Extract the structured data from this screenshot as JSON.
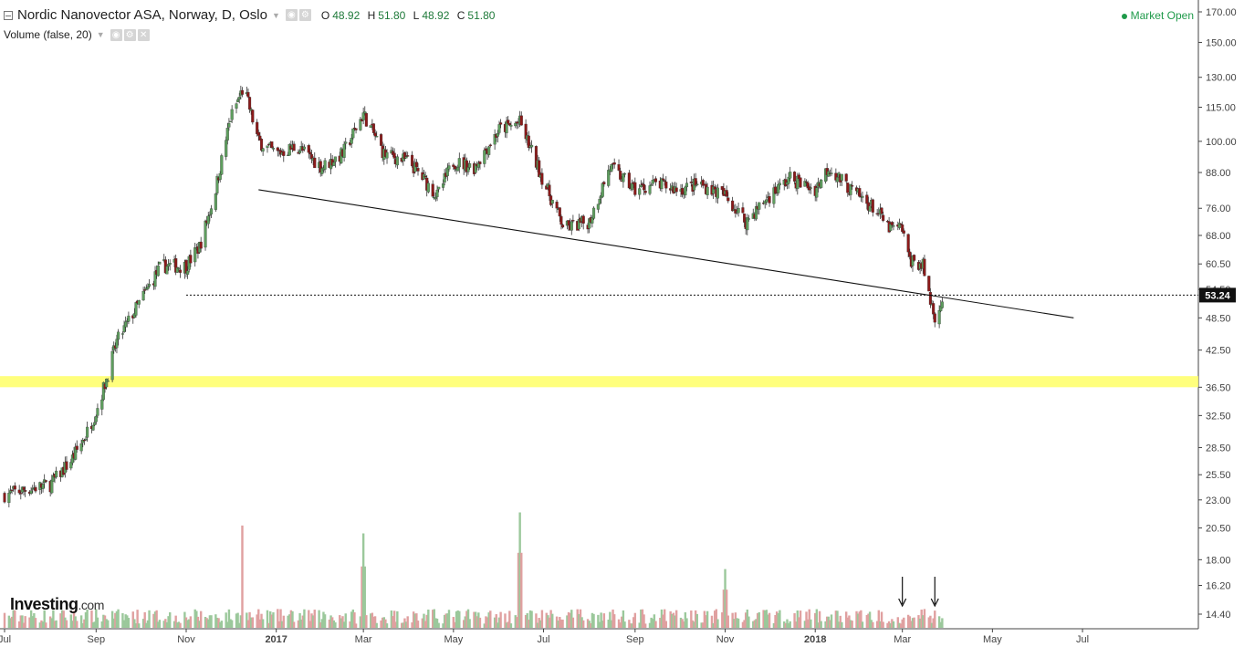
{
  "header": {
    "title": "Nordic Nanovector ASA, Norway, D, Oslo",
    "ohlc": [
      {
        "key": "O",
        "value": "48.92"
      },
      {
        "key": "H",
        "value": "51.80"
      },
      {
        "key": "L",
        "value": "48.92"
      },
      {
        "key": "C",
        "value": "51.80"
      }
    ],
    "market_status": "Market Open",
    "volume_label": "Volume (false, 20)"
  },
  "logo": {
    "name": "Investing",
    "suffix": ".com"
  },
  "colors": {
    "up": "#5e9e5e",
    "down": "#8b1a1a",
    "vol_up": "#9bc89b",
    "vol_down": "#e0a0a0",
    "highlight": "#ffff66",
    "text": "#222222",
    "market_open": "#1f9a4a"
  },
  "chart_data": {
    "type": "candlestick",
    "symbol": "Nordic Nanovector ASA",
    "exchange": "Oslo",
    "interval": "D",
    "y_scale": "log",
    "y_ticks": [
      14.4,
      16.2,
      18.0,
      20.5,
      23.0,
      25.5,
      28.5,
      32.5,
      36.5,
      42.5,
      48.5,
      54.5,
      60.5,
      68.0,
      76.0,
      88.0,
      100.0,
      115.0,
      130.0,
      150.0,
      170.0
    ],
    "x_ticks": [
      "Jul",
      "Sep",
      "Nov",
      "2017",
      "Mar",
      "May",
      "Jul",
      "Sep",
      "Nov",
      "2018",
      "Mar",
      "May",
      "Jul"
    ],
    "x_tick_bold": [
      "2017",
      "2018"
    ],
    "last_price": "53.24",
    "price_path": [
      [
        "2016-07-01",
        23.5
      ],
      [
        "2016-07-15",
        24.0
      ],
      [
        "2016-08-01",
        24.5
      ],
      [
        "2016-08-15",
        27.0
      ],
      [
        "2016-08-25",
        30.0
      ],
      [
        "2016-09-01",
        33.0
      ],
      [
        "2016-09-07",
        37.0
      ],
      [
        "2016-09-15",
        44.0
      ],
      [
        "2016-10-01",
        52.0
      ],
      [
        "2016-10-15",
        60.0
      ],
      [
        "2016-11-01",
        60.0
      ],
      [
        "2016-11-10",
        65.0
      ],
      [
        "2016-11-20",
        80.0
      ],
      [
        "2016-12-01",
        110.0
      ],
      [
        "2016-12-10",
        125.0
      ],
      [
        "2016-12-20",
        100.0
      ],
      [
        "2017-01-01",
        95.0
      ],
      [
        "2017-01-15",
        98.0
      ],
      [
        "2017-02-01",
        90.0
      ],
      [
        "2017-02-15",
        95.0
      ],
      [
        "2017-03-01",
        112.0
      ],
      [
        "2017-03-15",
        95.0
      ],
      [
        "2017-04-01",
        92.0
      ],
      [
        "2017-04-20",
        80.0
      ],
      [
        "2017-05-01",
        92.0
      ],
      [
        "2017-05-15",
        90.0
      ],
      [
        "2017-06-01",
        105.0
      ],
      [
        "2017-06-15",
        108.0
      ],
      [
        "2017-07-01",
        85.0
      ],
      [
        "2017-07-15",
        70.0
      ],
      [
        "2017-08-01",
        72.0
      ],
      [
        "2017-08-15",
        90.0
      ],
      [
        "2017-09-01",
        82.0
      ],
      [
        "2017-09-15",
        84.0
      ],
      [
        "2017-10-01",
        82.0
      ],
      [
        "2017-10-15",
        84.0
      ],
      [
        "2017-11-01",
        80.0
      ],
      [
        "2017-11-15",
        72.0
      ],
      [
        "2017-12-01",
        80.0
      ],
      [
        "2017-12-15",
        86.0
      ],
      [
        "2018-01-01",
        82.0
      ],
      [
        "2018-01-10",
        90.0
      ],
      [
        "2018-01-25",
        82.0
      ],
      [
        "2018-02-10",
        76.0
      ],
      [
        "2018-02-20",
        70.0
      ],
      [
        "2018-03-01",
        70.0
      ],
      [
        "2018-03-05",
        62.0
      ],
      [
        "2018-03-15",
        60.0
      ],
      [
        "2018-03-20",
        52.0
      ],
      [
        "2018-03-23",
        49.0
      ],
      [
        "2018-03-28",
        51.8
      ]
    ],
    "volume_spikes": [
      {
        "date": "2016-12-10",
        "relative": 0.75
      },
      {
        "date": "2017-03-01",
        "relative": 0.45
      },
      {
        "date": "2017-06-15",
        "relative": 0.55
      },
      {
        "date": "2017-11-01",
        "relative": 0.28
      }
    ],
    "annotations": {
      "trendline": {
        "start": [
          "2016-12-20",
          82.0
        ],
        "end": [
          "2018-06-25",
          48.5
        ]
      },
      "dotted_level": {
        "start": "2016-11-01",
        "value": 53.24
      },
      "highlight_band": [
        36.5,
        38.2
      ],
      "arrows": [
        "2018-03-01",
        "2018-03-23"
      ]
    }
  }
}
